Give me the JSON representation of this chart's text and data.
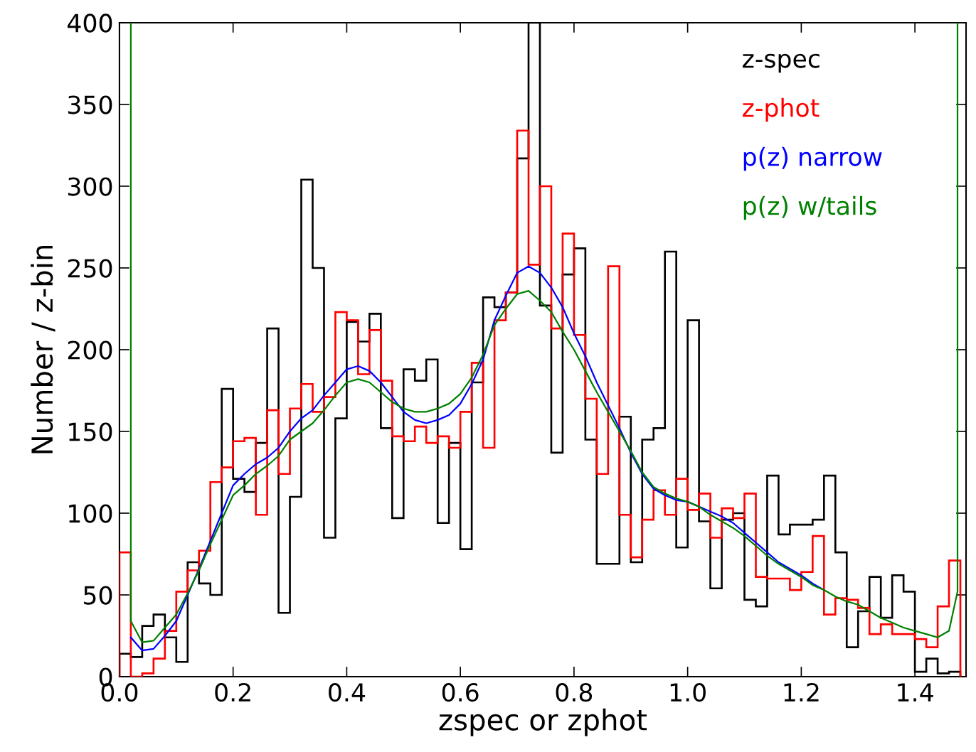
{
  "chart_data": {
    "type": "histogram",
    "xlabel": "zspec or zphot",
    "ylabel": "Number / z-bin",
    "bins": [
      0.0,
      0.02,
      0.04,
      0.06,
      0.08,
      0.1,
      0.12,
      0.14,
      0.16,
      0.18,
      0.2,
      0.22,
      0.24,
      0.26,
      0.28,
      0.3,
      0.32,
      0.34,
      0.36,
      0.38,
      0.4,
      0.42,
      0.44,
      0.46,
      0.48,
      0.5,
      0.52,
      0.54,
      0.56,
      0.58,
      0.6,
      0.62,
      0.64,
      0.66,
      0.68,
      0.7,
      0.72,
      0.74,
      0.76,
      0.78,
      0.8,
      0.82,
      0.84,
      0.86,
      0.88,
      0.9,
      0.92,
      0.94,
      0.96,
      0.98,
      1.0,
      1.02,
      1.04,
      1.06,
      1.08,
      1.1,
      1.12,
      1.14,
      1.16,
      1.18,
      1.2,
      1.22,
      1.24,
      1.26,
      1.28,
      1.3,
      1.32,
      1.34,
      1.36,
      1.38,
      1.4,
      1.42,
      1.44,
      1.46,
      1.48
    ],
    "series": [
      {
        "name": "z-spec",
        "color": "#000000",
        "values": [
          14,
          12,
          31,
          38,
          24,
          9,
          70,
          57,
          50,
          176,
          121,
          113,
          143,
          213,
          39,
          110,
          304,
          250,
          85,
          158,
          217,
          205,
          222,
          152,
          97,
          188,
          181,
          194,
          94,
          143,
          78,
          180,
          232,
          226,
          235,
          317,
          400,
          227,
          137,
          246,
          262,
          145,
          69,
          69,
          159,
          70,
          145,
          152,
          260,
          79,
          218,
          95,
          54,
          96,
          100,
          47,
          43,
          123,
          87,
          93,
          93,
          96,
          123,
          76,
          18,
          40,
          61,
          36,
          62,
          52,
          3,
          11,
          2,
          3
        ]
      },
      {
        "name": "z-phot",
        "color": "#ff0000",
        "values": [
          76,
          0,
          2,
          11,
          28,
          52,
          65,
          77,
          119,
          128,
          144,
          146,
          99,
          163,
          124,
          164,
          179,
          162,
          171,
          223,
          218,
          185,
          212,
          181,
          147,
          144,
          153,
          143,
          147,
          140,
          162,
          192,
          140,
          218,
          235,
          334,
          252,
          300,
          213,
          271,
          209,
          170,
          124,
          251,
          99,
          73,
          96,
          114,
          99,
          121,
          102,
          112,
          85,
          103,
          97,
          112,
          61,
          60,
          60,
          53,
          64,
          86,
          38,
          48,
          47,
          42,
          26,
          32,
          26,
          26,
          23,
          18,
          43,
          71
        ]
      },
      {
        "name": "p(z) narrow",
        "color": "#0000ff",
        "type": "line",
        "x": [
          0.02,
          0.04,
          0.06,
          0.08,
          0.1,
          0.12,
          0.14,
          0.16,
          0.18,
          0.2,
          0.22,
          0.24,
          0.26,
          0.28,
          0.3,
          0.32,
          0.34,
          0.36,
          0.38,
          0.4,
          0.42,
          0.44,
          0.46,
          0.48,
          0.5,
          0.52,
          0.54,
          0.56,
          0.58,
          0.6,
          0.62,
          0.64,
          0.66,
          0.68,
          0.7,
          0.72,
          0.74,
          0.76,
          0.78,
          0.8,
          0.82,
          0.84,
          0.86,
          0.88,
          0.9,
          0.92,
          0.94,
          0.96,
          0.98,
          1.0,
          1.02,
          1.04,
          1.06,
          1.08,
          1.1,
          1.12,
          1.14,
          1.16,
          1.18,
          1.2,
          1.22,
          1.24
        ],
        "values": [
          24,
          16,
          17,
          25,
          34,
          50,
          66,
          83,
          100,
          117,
          124,
          130,
          134,
          140,
          150,
          158,
          163,
          172,
          180,
          188,
          190,
          187,
          180,
          171,
          162,
          157,
          155,
          157,
          160,
          167,
          179,
          194,
          218,
          233,
          247,
          251,
          247,
          238,
          226,
          210,
          196,
          180,
          166,
          152,
          137,
          124,
          115,
          111,
          108,
          107,
          104,
          101,
          98,
          94,
          88,
          82,
          76,
          70,
          66,
          62,
          57,
          53
        ]
      },
      {
        "name": "p(z) w/tails",
        "color": "#008000",
        "type": "line",
        "x": [
          0.02,
          0.02,
          0.04,
          0.06,
          0.08,
          0.1,
          0.12,
          0.14,
          0.16,
          0.18,
          0.2,
          0.22,
          0.24,
          0.26,
          0.28,
          0.3,
          0.32,
          0.34,
          0.36,
          0.38,
          0.4,
          0.42,
          0.44,
          0.46,
          0.48,
          0.5,
          0.52,
          0.54,
          0.56,
          0.58,
          0.6,
          0.62,
          0.64,
          0.66,
          0.68,
          0.7,
          0.72,
          0.74,
          0.76,
          0.78,
          0.8,
          0.82,
          0.84,
          0.86,
          0.88,
          0.9,
          0.92,
          0.94,
          0.96,
          0.98,
          1.0,
          1.02,
          1.04,
          1.06,
          1.08,
          1.1,
          1.12,
          1.14,
          1.16,
          1.18,
          1.2,
          1.22,
          1.24,
          1.26,
          1.28,
          1.3,
          1.32,
          1.34,
          1.36,
          1.38,
          1.4,
          1.42,
          1.44,
          1.46,
          1.475,
          1.475
        ],
        "values": [
          400,
          34,
          21,
          22,
          30,
          38,
          51,
          65,
          81,
          96,
          111,
          117,
          124,
          129,
          135,
          145,
          150,
          155,
          163,
          172,
          180,
          182,
          180,
          174,
          168,
          164,
          162,
          162,
          164,
          167,
          173,
          183,
          197,
          215,
          225,
          234,
          236,
          230,
          223,
          211,
          200,
          187,
          174,
          162,
          150,
          138,
          125,
          116,
          112,
          109,
          107,
          104,
          99,
          95,
          91,
          86,
          80,
          74,
          69,
          65,
          61,
          56,
          53,
          49,
          46,
          44,
          40,
          36,
          33,
          30,
          28,
          26,
          24,
          28,
          52,
          400
        ]
      }
    ],
    "xlim": [
      0,
      1.49
    ],
    "ylim": [
      0,
      400
    ],
    "xticks": [
      {
        "value": 0,
        "label": "0.0"
      },
      0.2,
      0.4,
      0.6,
      0.8,
      {
        "value": 1,
        "label": "1.0"
      },
      1.2,
      1.4
    ],
    "yticks": [
      0,
      50,
      100,
      150,
      200,
      250,
      300,
      350,
      400
    ],
    "grid": false,
    "legend": "top right"
  }
}
